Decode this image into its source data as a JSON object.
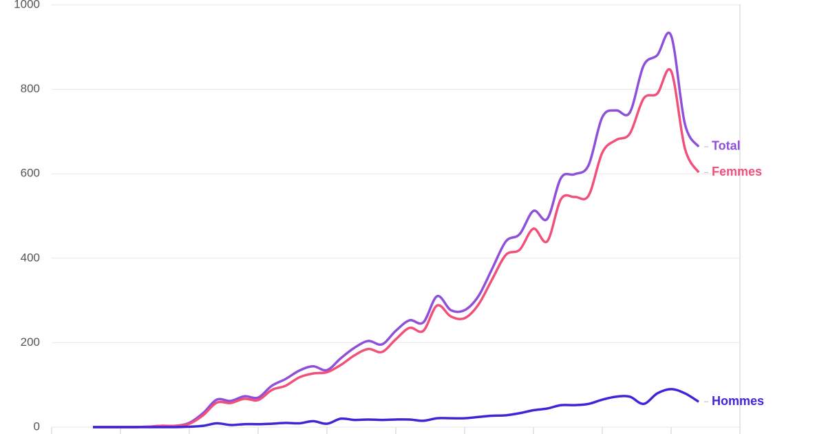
{
  "chart_data": {
    "type": "line",
    "categories": [
      null,
      null,
      null,
      null,
      null,
      null,
      null,
      null,
      null,
      null,
      null,
      null,
      null,
      null,
      null,
      null,
      null,
      null,
      null,
      null,
      null,
      null,
      null,
      null,
      null,
      null,
      null,
      null,
      null,
      null,
      null,
      null,
      null,
      null,
      null,
      null,
      null,
      null,
      null,
      null,
      null,
      null,
      null,
      null,
      null
    ],
    "series": [
      {
        "name": "Total",
        "color": "#8e4fd9",
        "values": [
          0,
          0,
          0,
          0,
          1,
          3,
          3,
          10,
          33,
          65,
          62,
          73,
          70,
          98,
          114,
          134,
          144,
          135,
          163,
          188,
          204,
          196,
          228,
          253,
          248,
          310,
          277,
          277,
          310,
          375,
          440,
          457,
          512,
          493,
          590,
          599,
          620,
          734,
          750,
          745,
          856,
          881,
          927,
          718,
          664
        ]
      },
      {
        "name": "Femmes",
        "color": "#f0507a",
        "values": [
          0,
          0,
          0,
          0,
          1,
          3,
          3,
          8,
          28,
          58,
          57,
          67,
          64,
          88,
          98,
          118,
          127,
          130,
          147,
          170,
          185,
          178,
          208,
          235,
          228,
          288,
          262,
          258,
          290,
          350,
          408,
          420,
          470,
          440,
          540,
          545,
          548,
          650,
          680,
          695,
          778,
          790,
          843,
          660,
          603
        ]
      },
      {
        "name": "Hommes",
        "color": "#3f25d6",
        "values": [
          0,
          0,
          0,
          0,
          0,
          0,
          0,
          1,
          3,
          9,
          5,
          7,
          7,
          8,
          10,
          9,
          14,
          8,
          20,
          17,
          18,
          17,
          18,
          18,
          15,
          21,
          21,
          21,
          24,
          27,
          28,
          33,
          40,
          44,
          52,
          52,
          55,
          65,
          72,
          72,
          55,
          80,
          90,
          80,
          60
        ]
      }
    ],
    "ylim": [
      0,
      1000
    ],
    "yticks": [
      0,
      200,
      400,
      600,
      800,
      1000
    ],
    "grid": true
  }
}
